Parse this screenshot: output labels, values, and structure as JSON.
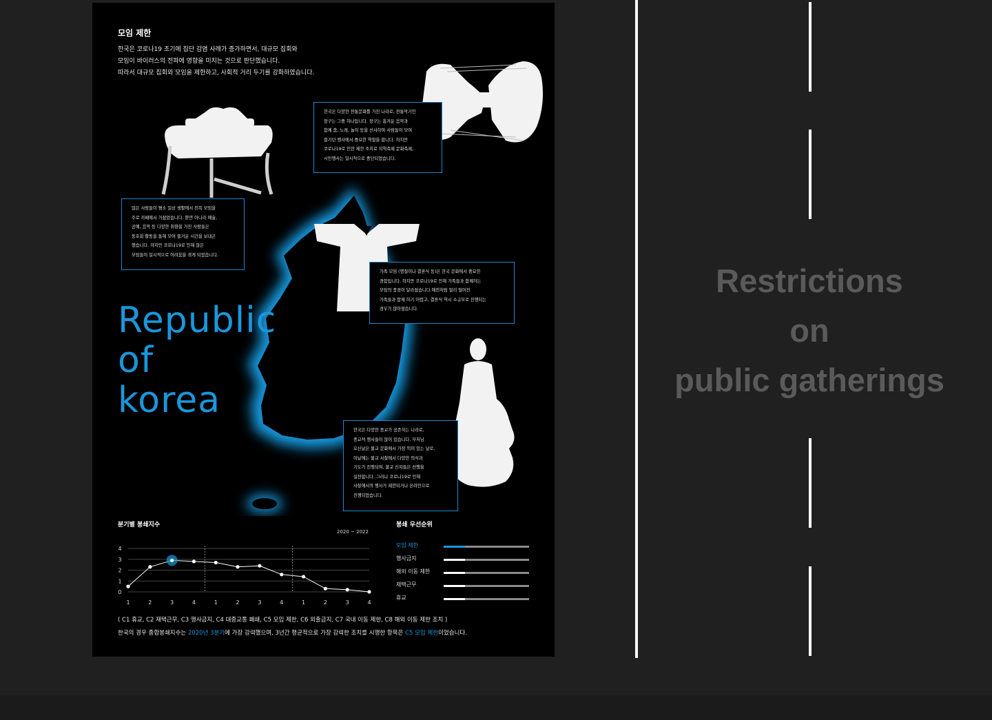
{
  "poster": {
    "section_title": "모임 제한",
    "intro_lines": [
      "한국은 코로나19 초기에 집단 감염 사례가 증가하면서, 대규모 집회와",
      "모임이 바이러스의 전파에 영향을 미치는 것으로 판단했습니다.",
      "따라서 대규모 집회와 모임을 제한하고, 사회적 거리 두기를 강화하였습니다."
    ],
    "big_title_lines": [
      "Republic",
      "of",
      "korea"
    ],
    "boxes": [
      {
        "lines": [
          "한국은 다양한 전통문화를 가진 나라로, 전통악기인",
          "장구는 그중 하나입니다. 장구는 흥겨운 음악과",
          "함께 춤, 노래, 놀이 등을 선사하며 사람들이 모여",
          "즐기던 행사에서 중요한 역할을 합니다. 하지만",
          "코로나19로 인한 제한 조치로 지역축제 문화축제,",
          "시민행사는 일시적으로 중단되었습니다."
        ]
      },
      {
        "lines": [
          "많은 사람들이 평소 일상 생활에서 친목 모임을",
          "주로 카페에서 가졌었습니다. 뿐만 아니라 예술,",
          "공예, 음악 등 다양한 취향을 가진 사람들은",
          "동호회 활동을 통해 모여 즐거운 시간을 보내곤",
          "했습니다. 하지만 코로나19로 인해 많은",
          "모임들이 일시적으로 어려움을 겪게 되었습니다."
        ]
      },
      {
        "lines": [
          "가족 모임 (명절이나 결혼식 등)은 한국 문화에서 중요한",
          "경험입니다. 하지만 코로나19로 인해 가족들과 함께하는",
          "모임의 풍경이 달라졌습니다.예전처럼 멀리 떨어진",
          "가족들과 함께 하기 어렵고, 결혼식 역시 소규모로 진행되는",
          "경우가 많아졌습니다."
        ]
      },
      {
        "lines": [
          "한국은 다양한 종교가 공존하는 나라로,",
          "종교적 행사들이 많이 있습니다. 부처님",
          "오신날은 불교 문화에서 가장 의미 있는 날로,",
          "이날에는 불교 사찰에서 다양한 의식과",
          "기도가 진행되며, 불교 신자들은 선행을",
          "실천합니다. 그러나 코로나19로 인해",
          "사찰에서의 행사가 제한되거나 온라인으로",
          "진행되었습니다."
        ]
      }
    ],
    "chart_title": "분기별   봉쇄지수",
    "chart_period": "2020 ~ 2022",
    "ranking_title": "봉쇄   우선순위",
    "ranking": [
      {
        "label": "모임 제한",
        "share": 0.25,
        "active": true
      },
      {
        "label": "행사금지",
        "share": 0.25,
        "active": false
      },
      {
        "label": "해외 이동 제한",
        "share": 0.25,
        "active": false
      },
      {
        "label": "재택근무",
        "share": 0.25,
        "active": false
      },
      {
        "label": "휴교",
        "share": 0.25,
        "active": false
      }
    ],
    "footnote_line1": "( C1 휴교, C2 재택근무, C3 행사금지, C4 대중교통 폐쇄, C5 모임 제한, C6 외출금지, C7 국내 이동 제한, C8 해외 이동 제한 조치 )",
    "footnote_line2": {
      "part1": "한국의 경우 종합봉쇄지수는 ",
      "hl1": "2020년 3분기",
      "part2": "에 가장 강력했으며, 3년간 평균적으로 가장 강력한 조치를 시행한 항목은 ",
      "hl2": "C5 모임 제한",
      "part3": "이었습니다."
    }
  },
  "chart_data": {
    "type": "line",
    "x": [
      "1",
      "2",
      "3",
      "4",
      "1",
      "2",
      "3",
      "4",
      "1",
      "2",
      "3",
      "4"
    ],
    "values": [
      0.5,
      2.3,
      2.9,
      2.8,
      2.7,
      2.3,
      2.4,
      1.6,
      1.4,
      0.3,
      0.2,
      0.0
    ],
    "ylim": [
      0,
      4
    ],
    "yticks": [
      "0",
      "1",
      "2",
      "3",
      "4"
    ],
    "highlight_index": 2,
    "grid": true,
    "accent": "#1997dc"
  },
  "side": {
    "title_lines": [
      "Restrictions",
      "on",
      "public gatherings"
    ]
  },
  "colors": {
    "accent": "#1997dc",
    "background": "#202020",
    "poster": "#000000"
  }
}
